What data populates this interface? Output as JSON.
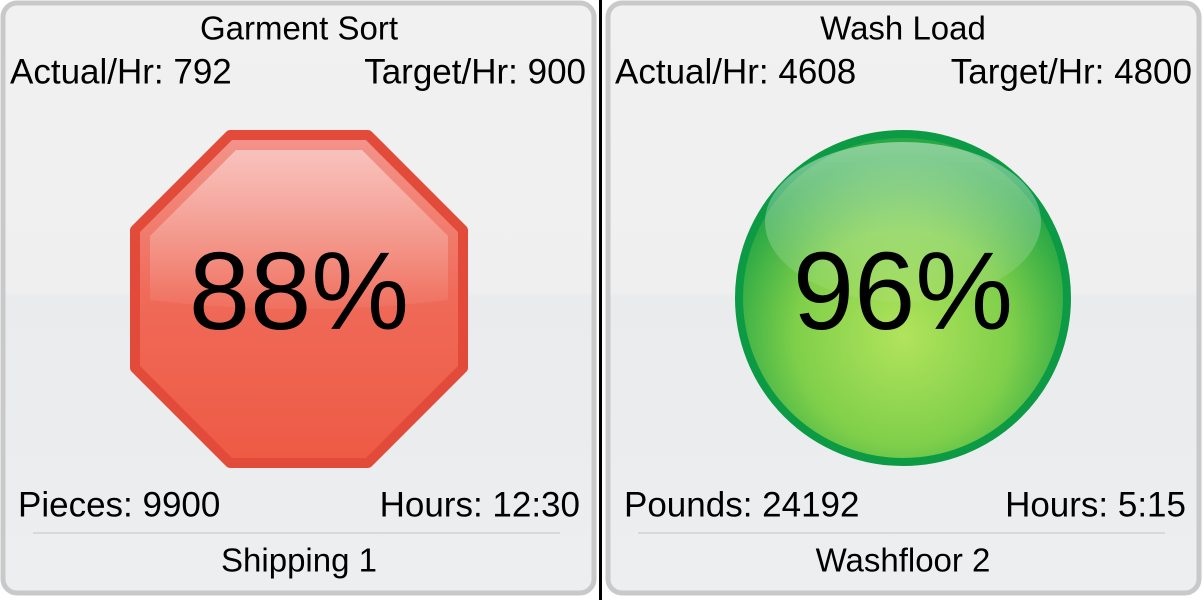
{
  "panels": [
    {
      "title": "Garment Sort",
      "actual": "Actual/Hr: 792",
      "target": "Target/Hr: 900",
      "percent": "88%",
      "left_stat": "Pieces: 9900",
      "right_stat": "Hours: 12:30",
      "location": "Shipping 1"
    },
    {
      "title": "Wash Load",
      "actual": "Actual/Hr: 4608",
      "target": "Target/Hr: 4800",
      "percent": "96%",
      "left_stat": "Pounds: 24192",
      "right_stat": "Hours: 5:15",
      "location": "Washfloor 2"
    }
  ]
}
